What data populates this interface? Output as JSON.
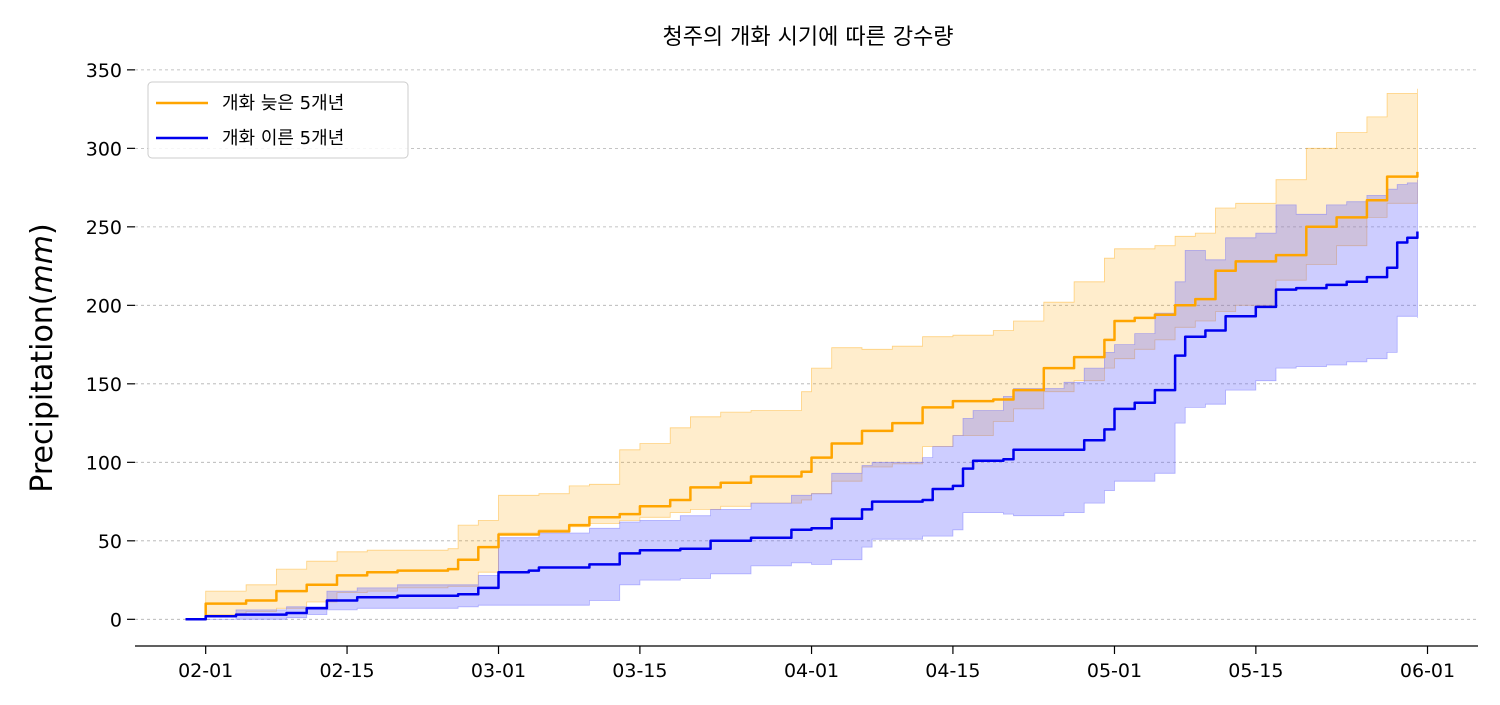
{
  "chart_data": {
    "type": "line",
    "title": "청주의 개화 시기에 따른 강수량",
    "xlabel": "",
    "ylabel": "Precipitation",
    "ylabel_unit": "mm",
    "xlim": [
      "2000-01-25",
      "2000-06-06"
    ],
    "ylim": [
      -17,
      355
    ],
    "x_ticks": [
      "02-01",
      "02-15",
      "03-01",
      "03-15",
      "04-01",
      "04-15",
      "05-01",
      "05-15",
      "06-01"
    ],
    "y_ticks": [
      0,
      50,
      100,
      150,
      200,
      250,
      300,
      350
    ],
    "grid": "horizontal-dashed",
    "legend_position": "top-left",
    "series": [
      {
        "name": "개화 늦은 5개년",
        "color": "#ffa500",
        "fill_color": "#ffa500",
        "points": [
          [
            "01-30",
            0
          ],
          [
            "02-01",
            10
          ],
          [
            "02-05",
            12
          ],
          [
            "02-08",
            18
          ],
          [
            "02-11",
            22
          ],
          [
            "02-14",
            28
          ],
          [
            "02-17",
            30
          ],
          [
            "02-20",
            31
          ],
          [
            "02-25",
            32
          ],
          [
            "02-26",
            38
          ],
          [
            "02-28",
            46
          ],
          [
            "03-01",
            54
          ],
          [
            "03-05",
            56
          ],
          [
            "03-08",
            60
          ],
          [
            "03-10",
            65
          ],
          [
            "03-13",
            67
          ],
          [
            "03-15",
            72
          ],
          [
            "03-18",
            76
          ],
          [
            "03-20",
            84
          ],
          [
            "03-23",
            87
          ],
          [
            "03-26",
            91
          ],
          [
            "03-31",
            94
          ],
          [
            "04-01",
            103
          ],
          [
            "04-03",
            112
          ],
          [
            "04-06",
            120
          ],
          [
            "04-09",
            125
          ],
          [
            "04-12",
            135
          ],
          [
            "04-15",
            139
          ],
          [
            "04-19",
            140
          ],
          [
            "04-21",
            146
          ],
          [
            "04-24",
            160
          ],
          [
            "04-27",
            167
          ],
          [
            "04-30",
            178
          ],
          [
            "05-01",
            190
          ],
          [
            "05-03",
            192
          ],
          [
            "05-05",
            194
          ],
          [
            "05-07",
            200
          ],
          [
            "05-09",
            204
          ],
          [
            "05-11",
            222
          ],
          [
            "05-13",
            228
          ],
          [
            "05-17",
            232
          ],
          [
            "05-20",
            250
          ],
          [
            "05-23",
            256
          ],
          [
            "05-26",
            267
          ],
          [
            "05-28",
            282
          ],
          [
            "05-31",
            285
          ]
        ],
        "band_upper": [
          [
            "01-30",
            0
          ],
          [
            "02-01",
            18
          ],
          [
            "02-05",
            22
          ],
          [
            "02-08",
            32
          ],
          [
            "02-11",
            37
          ],
          [
            "02-14",
            43
          ],
          [
            "02-17",
            44
          ],
          [
            "02-25",
            45
          ],
          [
            "02-26",
            60
          ],
          [
            "02-28",
            63
          ],
          [
            "03-01",
            79
          ],
          [
            "03-05",
            80
          ],
          [
            "03-08",
            85
          ],
          [
            "03-10",
            86
          ],
          [
            "03-13",
            108
          ],
          [
            "03-15",
            112
          ],
          [
            "03-18",
            122
          ],
          [
            "03-20",
            129
          ],
          [
            "03-23",
            132
          ],
          [
            "03-26",
            133
          ],
          [
            "03-31",
            145
          ],
          [
            "04-01",
            160
          ],
          [
            "04-03",
            173
          ],
          [
            "04-06",
            172
          ],
          [
            "04-09",
            174
          ],
          [
            "04-12",
            180
          ],
          [
            "04-15",
            181
          ],
          [
            "04-19",
            184
          ],
          [
            "04-21",
            190
          ],
          [
            "04-24",
            202
          ],
          [
            "04-27",
            215
          ],
          [
            "04-30",
            230
          ],
          [
            "05-01",
            236
          ],
          [
            "05-03",
            236
          ],
          [
            "05-05",
            238
          ],
          [
            "05-07",
            244
          ],
          [
            "05-09",
            246
          ],
          [
            "05-11",
            262
          ],
          [
            "05-13",
            265
          ],
          [
            "05-17",
            280
          ],
          [
            "05-20",
            300
          ],
          [
            "05-23",
            310
          ],
          [
            "05-26",
            320
          ],
          [
            "05-28",
            335
          ],
          [
            "05-31",
            338
          ]
        ],
        "band_lower": [
          [
            "01-30",
            0
          ],
          [
            "02-01",
            3
          ],
          [
            "02-05",
            5
          ],
          [
            "02-08",
            7
          ],
          [
            "02-11",
            11
          ],
          [
            "02-14",
            17
          ],
          [
            "02-17",
            18
          ],
          [
            "02-20",
            20
          ],
          [
            "02-25",
            21
          ],
          [
            "02-28",
            30
          ],
          [
            "03-01",
            55
          ],
          [
            "03-05",
            57
          ],
          [
            "03-08",
            59
          ],
          [
            "03-10",
            61
          ],
          [
            "03-13",
            63
          ],
          [
            "03-15",
            65
          ],
          [
            "03-18",
            68
          ],
          [
            "03-20",
            70
          ],
          [
            "03-23",
            72
          ],
          [
            "03-26",
            74
          ],
          [
            "03-31",
            76
          ],
          [
            "04-01",
            80
          ],
          [
            "04-03",
            88
          ],
          [
            "04-06",
            97
          ],
          [
            "04-09",
            99
          ],
          [
            "04-12",
            110
          ],
          [
            "04-15",
            117
          ],
          [
            "04-19",
            126
          ],
          [
            "04-21",
            134
          ],
          [
            "04-24",
            145
          ],
          [
            "04-27",
            152
          ],
          [
            "04-30",
            160
          ],
          [
            "05-01",
            166
          ],
          [
            "05-03",
            172
          ],
          [
            "05-05",
            178
          ],
          [
            "05-07",
            186
          ],
          [
            "05-09",
            190
          ],
          [
            "05-11",
            196
          ],
          [
            "05-13",
            200
          ],
          [
            "05-17",
            216
          ],
          [
            "05-20",
            226
          ],
          [
            "05-23",
            238
          ],
          [
            "05-26",
            256
          ],
          [
            "05-28",
            265
          ],
          [
            "05-31",
            272
          ]
        ]
      },
      {
        "name": "개화 이른 5개년",
        "color": "#0000ee",
        "fill_color": "#6666ff",
        "points": [
          [
            "01-30",
            0
          ],
          [
            "02-01",
            2
          ],
          [
            "02-04",
            3
          ],
          [
            "02-09",
            4
          ],
          [
            "02-11",
            7
          ],
          [
            "02-13",
            12
          ],
          [
            "02-16",
            14
          ],
          [
            "02-20",
            15
          ],
          [
            "02-26",
            16
          ],
          [
            "02-28",
            20
          ],
          [
            "03-01",
            30
          ],
          [
            "03-04",
            31
          ],
          [
            "03-05",
            33
          ],
          [
            "03-10",
            35
          ],
          [
            "03-13",
            42
          ],
          [
            "03-15",
            44
          ],
          [
            "03-19",
            45
          ],
          [
            "03-22",
            50
          ],
          [
            "03-26",
            52
          ],
          [
            "03-30",
            57
          ],
          [
            "04-01",
            58
          ],
          [
            "04-03",
            64
          ],
          [
            "04-06",
            70
          ],
          [
            "04-07",
            75
          ],
          [
            "04-12",
            76
          ],
          [
            "04-13",
            83
          ],
          [
            "04-15",
            85
          ],
          [
            "04-16",
            96
          ],
          [
            "04-17",
            101
          ],
          [
            "04-20",
            102
          ],
          [
            "04-21",
            108
          ],
          [
            "04-26",
            108
          ],
          [
            "04-28",
            114
          ],
          [
            "04-30",
            121
          ],
          [
            "05-01",
            134
          ],
          [
            "05-03",
            138
          ],
          [
            "05-05",
            146
          ],
          [
            "05-07",
            168
          ],
          [
            "05-08",
            180
          ],
          [
            "05-10",
            184
          ],
          [
            "05-12",
            193
          ],
          [
            "05-15",
            199
          ],
          [
            "05-17",
            210
          ],
          [
            "05-19",
            211
          ],
          [
            "05-22",
            213
          ],
          [
            "05-24",
            215
          ],
          [
            "05-26",
            218
          ],
          [
            "05-28",
            224
          ],
          [
            "05-29",
            240
          ],
          [
            "05-30",
            243
          ],
          [
            "05-31",
            247
          ]
        ],
        "band_upper": [
          [
            "01-30",
            0
          ],
          [
            "02-04",
            6
          ],
          [
            "02-09",
            8
          ],
          [
            "02-13",
            18
          ],
          [
            "02-16",
            20
          ],
          [
            "02-20",
            22
          ],
          [
            "02-26",
            22
          ],
          [
            "02-28",
            28
          ],
          [
            "03-01",
            52
          ],
          [
            "03-05",
            55
          ],
          [
            "03-10",
            58
          ],
          [
            "03-13",
            62
          ],
          [
            "03-15",
            63
          ],
          [
            "03-19",
            66
          ],
          [
            "03-22",
            70
          ],
          [
            "03-26",
            74
          ],
          [
            "03-30",
            79
          ],
          [
            "04-01",
            80
          ],
          [
            "04-03",
            93
          ],
          [
            "04-06",
            98
          ],
          [
            "04-07",
            100
          ],
          [
            "04-12",
            103
          ],
          [
            "04-13",
            110
          ],
          [
            "04-15",
            117
          ],
          [
            "04-16",
            128
          ],
          [
            "04-17",
            133
          ],
          [
            "04-20",
            142
          ],
          [
            "04-21",
            147
          ],
          [
            "04-26",
            151
          ],
          [
            "04-28",
            160
          ],
          [
            "04-30",
            170
          ],
          [
            "05-01",
            175
          ],
          [
            "05-03",
            182
          ],
          [
            "05-05",
            195
          ],
          [
            "05-07",
            215
          ],
          [
            "05-08",
            235
          ],
          [
            "05-10",
            229
          ],
          [
            "05-12",
            243
          ],
          [
            "05-15",
            246
          ],
          [
            "05-17",
            264
          ],
          [
            "05-19",
            258
          ],
          [
            "05-22",
            264
          ],
          [
            "05-24",
            266
          ],
          [
            "05-26",
            270
          ],
          [
            "05-28",
            274
          ],
          [
            "05-29",
            277
          ],
          [
            "05-30",
            278
          ],
          [
            "05-31",
            280
          ]
        ],
        "band_lower": [
          [
            "01-30",
            0
          ],
          [
            "02-04",
            0
          ],
          [
            "02-09",
            1
          ],
          [
            "02-11",
            3
          ],
          [
            "02-13",
            6
          ],
          [
            "02-16",
            7
          ],
          [
            "02-20",
            7
          ],
          [
            "02-26",
            8
          ],
          [
            "02-28",
            9
          ],
          [
            "03-01",
            9
          ],
          [
            "03-05",
            9
          ],
          [
            "03-10",
            12
          ],
          [
            "03-13",
            22
          ],
          [
            "03-15",
            25
          ],
          [
            "03-19",
            26
          ],
          [
            "03-22",
            29
          ],
          [
            "03-26",
            34
          ],
          [
            "03-30",
            36
          ],
          [
            "04-01",
            35
          ],
          [
            "04-03",
            38
          ],
          [
            "04-06",
            46
          ],
          [
            "04-07",
            51
          ],
          [
            "04-12",
            53
          ],
          [
            "04-13",
            53
          ],
          [
            "04-15",
            57
          ],
          [
            "04-16",
            68
          ],
          [
            "04-17",
            68
          ],
          [
            "04-20",
            67
          ],
          [
            "04-21",
            66
          ],
          [
            "04-26",
            68
          ],
          [
            "04-28",
            74
          ],
          [
            "04-30",
            82
          ],
          [
            "05-01",
            88
          ],
          [
            "05-03",
            88
          ],
          [
            "05-05",
            93
          ],
          [
            "05-07",
            125
          ],
          [
            "05-08",
            135
          ],
          [
            "05-10",
            137
          ],
          [
            "05-12",
            146
          ],
          [
            "05-15",
            152
          ],
          [
            "05-17",
            160
          ],
          [
            "05-19",
            161
          ],
          [
            "05-22",
            162
          ],
          [
            "05-24",
            164
          ],
          [
            "05-26",
            166
          ],
          [
            "05-28",
            170
          ],
          [
            "05-29",
            193
          ],
          [
            "05-30",
            193
          ],
          [
            "05-31",
            192
          ]
        ]
      }
    ]
  }
}
